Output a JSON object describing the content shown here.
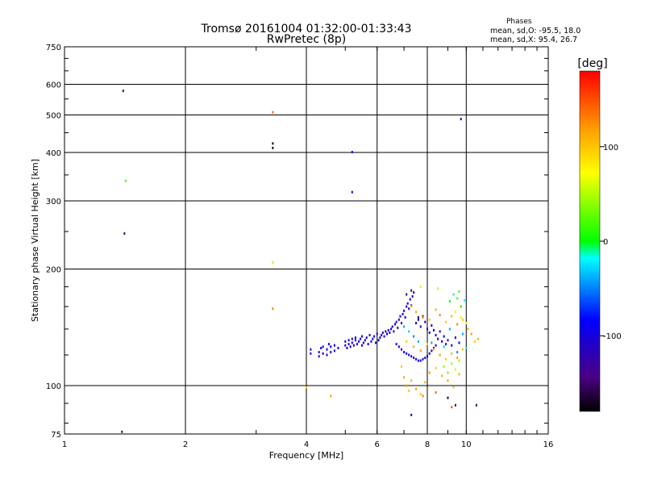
{
  "header": {
    "title_line1": "Tromsø 20161004 01:32:00-01:33:43",
    "title_line2": "RwPretec (8p)"
  },
  "phases": {
    "heading": "Phases",
    "line_o": "mean, sd,O: -95.5, 18.0",
    "line_x": "mean, sd,X:  95.4, 26.7"
  },
  "chart_data": {
    "type": "scatter",
    "xlabel": "Frequency [MHz]",
    "ylabel": "Stationary phase Virtual Height [km]",
    "xscale": "log",
    "yscale": "log",
    "xlim": [
      1,
      16
    ],
    "ylim": [
      75,
      750
    ],
    "xticks": [
      1,
      2,
      4,
      6,
      8,
      10,
      16
    ],
    "yticks": [
      75,
      100,
      200,
      300,
      400,
      500,
      600,
      750
    ],
    "grid": true,
    "colorbar": {
      "label": "[deg]",
      "range": [
        -180,
        180
      ],
      "ticks": [
        -100,
        0,
        100
      ]
    },
    "points": [
      [
        1.4,
        577,
        -150
      ],
      [
        1.42,
        338,
        20
      ],
      [
        1.41,
        247,
        -150
      ],
      [
        1.39,
        76,
        -150
      ],
      [
        3.3,
        508,
        140
      ],
      [
        3.3,
        422,
        -170
      ],
      [
        3.3,
        411,
        -170
      ],
      [
        3.3,
        208,
        50
      ],
      [
        3.3,
        158,
        130
      ],
      [
        5.2,
        401,
        -100
      ],
      [
        5.2,
        316,
        -100
      ],
      [
        9.7,
        488,
        -100
      ],
      [
        4.0,
        99,
        100
      ],
      [
        4.6,
        94,
        120
      ],
      [
        4.1,
        124,
        -100
      ],
      [
        4.1,
        121,
        -100
      ],
      [
        4.3,
        122,
        -100
      ],
      [
        4.3,
        119,
        -110
      ],
      [
        4.35,
        125,
        -100
      ],
      [
        4.4,
        126,
        -100
      ],
      [
        4.4,
        121,
        -100
      ],
      [
        4.5,
        124,
        -100
      ],
      [
        4.5,
        120,
        -110
      ],
      [
        4.55,
        128,
        -100
      ],
      [
        4.6,
        122,
        -100
      ],
      [
        4.6,
        126,
        -100
      ],
      [
        4.7,
        123,
        -100
      ],
      [
        4.7,
        127,
        -100
      ],
      [
        4.8,
        125,
        -100
      ],
      [
        5.0,
        130,
        -100
      ],
      [
        5.0,
        127,
        -110
      ],
      [
        5.05,
        125,
        -100
      ],
      [
        5.1,
        131,
        -100
      ],
      [
        5.1,
        128,
        -100
      ],
      [
        5.15,
        126,
        -110
      ],
      [
        5.2,
        132,
        -100
      ],
      [
        5.2,
        129,
        -100
      ],
      [
        5.25,
        127,
        -100
      ],
      [
        5.3,
        131,
        -100
      ],
      [
        5.3,
        133,
        -110
      ],
      [
        5.35,
        128,
        -100
      ],
      [
        5.4,
        130,
        -100
      ],
      [
        5.45,
        132,
        -100
      ],
      [
        5.5,
        127,
        -100
      ],
      [
        5.5,
        134,
        -110
      ],
      [
        5.55,
        129,
        -100
      ],
      [
        5.6,
        131,
        -100
      ],
      [
        5.65,
        133,
        -100
      ],
      [
        5.7,
        128,
        -100
      ],
      [
        5.75,
        135,
        -110
      ],
      [
        5.8,
        130,
        -100
      ],
      [
        5.85,
        132,
        -100
      ],
      [
        5.9,
        134,
        -100
      ],
      [
        5.95,
        129,
        -100
      ],
      [
        6.0,
        136,
        -100
      ],
      [
        6.05,
        131,
        -110
      ],
      [
        6.1,
        133,
        -100
      ],
      [
        6.15,
        135,
        -100
      ],
      [
        6.2,
        137,
        -100
      ],
      [
        6.25,
        134,
        -100
      ],
      [
        6.3,
        138,
        -110
      ],
      [
        6.35,
        136,
        -100
      ],
      [
        6.4,
        139,
        -100
      ],
      [
        6.45,
        137,
        -100
      ],
      [
        6.5,
        140,
        -100
      ],
      [
        6.55,
        142,
        -110
      ],
      [
        6.6,
        138,
        -100
      ],
      [
        6.65,
        144,
        -100
      ],
      [
        6.7,
        146,
        -100
      ],
      [
        6.75,
        141,
        -100
      ],
      [
        6.8,
        148,
        -110
      ],
      [
        6.85,
        151,
        -100
      ],
      [
        6.9,
        145,
        -100
      ],
      [
        6.95,
        153,
        -100
      ],
      [
        7.0,
        156,
        -100
      ],
      [
        7.05,
        150,
        -110
      ],
      [
        7.1,
        160,
        -100
      ],
      [
        7.15,
        163,
        -100
      ],
      [
        7.2,
        158,
        -100
      ],
      [
        7.25,
        167,
        -100
      ],
      [
        7.3,
        161,
        -110
      ],
      [
        7.35,
        170,
        -100
      ],
      [
        7.4,
        174,
        -100
      ],
      [
        6.7,
        128,
        -100
      ],
      [
        6.8,
        126,
        -100
      ],
      [
        6.9,
        124,
        -110
      ],
      [
        7.0,
        122,
        -100
      ],
      [
        7.1,
        121,
        -100
      ],
      [
        7.2,
        120,
        -100
      ],
      [
        7.3,
        119,
        -100
      ],
      [
        7.4,
        118,
        -110
      ],
      [
        7.5,
        117,
        -100
      ],
      [
        7.6,
        116,
        -100
      ],
      [
        7.7,
        116,
        -100
      ],
      [
        7.8,
        117,
        -110
      ],
      [
        7.9,
        118,
        -100
      ],
      [
        8.0,
        119,
        -100
      ],
      [
        8.1,
        121,
        -100
      ],
      [
        8.2,
        123,
        -100
      ],
      [
        8.3,
        125,
        -110
      ],
      [
        8.4,
        127,
        -100
      ],
      [
        7.5,
        145,
        -100
      ],
      [
        7.6,
        148,
        -100
      ],
      [
        7.7,
        142,
        -110
      ],
      [
        7.8,
        151,
        -100
      ],
      [
        7.9,
        146,
        -100
      ],
      [
        8.0,
        140,
        -100
      ],
      [
        8.1,
        137,
        -100
      ],
      [
        8.2,
        143,
        -110
      ],
      [
        8.3,
        139,
        -100
      ],
      [
        8.4,
        135,
        -100
      ],
      [
        8.5,
        132,
        -100
      ],
      [
        8.6,
        138,
        -110
      ],
      [
        8.7,
        130,
        -100
      ],
      [
        8.8,
        134,
        -100
      ],
      [
        8.9,
        128,
        -100
      ],
      [
        9.0,
        131,
        -100
      ],
      [
        9.2,
        127,
        -110
      ],
      [
        9.4,
        133,
        -100
      ],
      [
        9.6,
        129,
        -100
      ],
      [
        7.0,
        142,
        -40
      ],
      [
        7.2,
        138,
        -30
      ],
      [
        7.4,
        134,
        -50
      ],
      [
        7.6,
        130,
        -40
      ],
      [
        8.2,
        129,
        -40
      ],
      [
        8.8,
        126,
        -30
      ],
      [
        9.1,
        140,
        -40
      ],
      [
        9.5,
        122,
        -50
      ],
      [
        9.8,
        136,
        -40
      ],
      [
        10.0,
        125,
        -30
      ],
      [
        7.3,
        160,
        100
      ],
      [
        7.5,
        155,
        110
      ],
      [
        7.8,
        150,
        130
      ],
      [
        8.1,
        148,
        100
      ],
      [
        8.4,
        157,
        110
      ],
      [
        8.6,
        152,
        130
      ],
      [
        8.9,
        146,
        100
      ],
      [
        9.2,
        151,
        110
      ],
      [
        9.5,
        144,
        130
      ],
      [
        9.8,
        148,
        100
      ],
      [
        10.1,
        140,
        110
      ],
      [
        10.3,
        136,
        120
      ],
      [
        10.5,
        130,
        100
      ],
      [
        10.7,
        132,
        110
      ],
      [
        7.1,
        130,
        100
      ],
      [
        7.4,
        126,
        110
      ],
      [
        7.7,
        123,
        120
      ],
      [
        8.0,
        128,
        100
      ],
      [
        8.3,
        124,
        110
      ],
      [
        8.6,
        120,
        120
      ],
      [
        8.9,
        117,
        100
      ],
      [
        9.2,
        121,
        110
      ],
      [
        9.5,
        118,
        120
      ],
      [
        9.8,
        124,
        100
      ],
      [
        6.9,
        112,
        100
      ],
      [
        7.0,
        105,
        110
      ],
      [
        7.1,
        100,
        120
      ],
      [
        7.2,
        97,
        100
      ],
      [
        7.3,
        103,
        110
      ],
      [
        7.5,
        98,
        120
      ],
      [
        7.7,
        95,
        100
      ],
      [
        7.9,
        102,
        110
      ],
      [
        8.1,
        108,
        120
      ],
      [
        8.4,
        111,
        100
      ],
      [
        8.7,
        106,
        110
      ],
      [
        9.0,
        103,
        120
      ],
      [
        9.3,
        99,
        100
      ],
      [
        9.6,
        107,
        110
      ],
      [
        8.8,
        112,
        40
      ],
      [
        9.0,
        108,
        30
      ],
      [
        9.2,
        114,
        40
      ],
      [
        9.4,
        110,
        60
      ],
      [
        9.6,
        116,
        40
      ],
      [
        9.1,
        165,
        0
      ],
      [
        9.3,
        172,
        -10
      ],
      [
        9.5,
        168,
        20
      ],
      [
        9.7,
        160,
        0
      ],
      [
        9.9,
        166,
        -20
      ],
      [
        9.4,
        155,
        80
      ],
      [
        9.7,
        150,
        60
      ],
      [
        10.0,
        145,
        80
      ],
      [
        7.1,
        172,
        -150
      ],
      [
        7.3,
        176,
        -150
      ],
      [
        7.6,
        150,
        -160
      ],
      [
        9.0,
        93,
        -170
      ],
      [
        9.4,
        89,
        -150
      ],
      [
        7.8,
        94,
        130
      ],
      [
        8.4,
        96,
        140
      ],
      [
        9.2,
        88,
        150
      ],
      [
        7.3,
        84,
        -90
      ],
      [
        10.6,
        89,
        -150
      ],
      [
        7.7,
        180,
        60
      ],
      [
        8.5,
        178,
        90
      ],
      [
        9.6,
        175,
        20
      ]
    ]
  }
}
